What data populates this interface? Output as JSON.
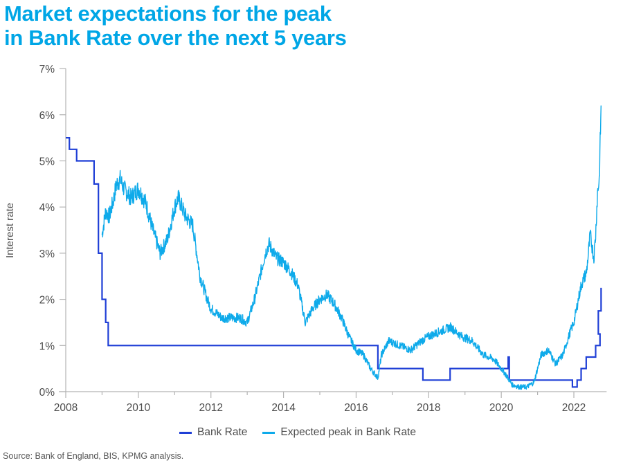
{
  "title_lines": [
    "Market expectations for the peak",
    "in Bank Rate over the next 5 years"
  ],
  "source": "Source: Bank of England, BIS, KPMG analysis.",
  "colors": {
    "title": "#00a6e6",
    "bank_rate": "#1f3fd6",
    "expected_peak": "#0eaaea",
    "axis": "#b3b3b3",
    "text": "#4d4d4d"
  },
  "chart_data": {
    "type": "line",
    "title": "Market expectations for the peak in Bank Rate over the next 5 years",
    "xlabel": "",
    "ylabel": "Interest rate",
    "xlim": [
      2008,
      2022.75
    ],
    "ylim": [
      0,
      7
    ],
    "x_ticks": [
      2008,
      2010,
      2012,
      2014,
      2016,
      2018,
      2020,
      2022
    ],
    "x_tick_labels": [
      "2008",
      "2010",
      "2012",
      "2014",
      "2016",
      "2018",
      "2020",
      "2022"
    ],
    "y_ticks": [
      0,
      1,
      2,
      3,
      4,
      5,
      6,
      7
    ],
    "y_tick_labels": [
      "0%",
      "1%",
      "2%",
      "3%",
      "4%",
      "5%",
      "6%",
      "7%"
    ],
    "grid": false,
    "legend_position": "bottom-center",
    "series": [
      {
        "name": "Bank Rate",
        "style": "step",
        "x": [
          2008.0,
          2008.1,
          2008.3,
          2008.78,
          2008.9,
          2009.0,
          2009.1,
          2009.17,
          2016.6,
          2017.84,
          2018.59,
          2020.19,
          2020.22,
          2021.96,
          2022.09,
          2022.2,
          2022.34,
          2022.6,
          2022.72
        ],
        "values": [
          5.5,
          5.25,
          5.0,
          4.5,
          3.0,
          2.0,
          1.5,
          1.0,
          0.5,
          0.25,
          0.5,
          0.75,
          0.25,
          0.1,
          0.25,
          0.5,
          0.75,
          1.0,
          1.25
        ],
        "note_final": {
          "x": 2022.75,
          "values_after": [
            1.75,
            2.25
          ]
        }
      },
      {
        "name": "Expected peak in Bank Rate",
        "style": "line",
        "x": [
          2009.0,
          2009.1,
          2009.2,
          2009.3,
          2009.4,
          2009.5,
          2009.6,
          2009.7,
          2009.8,
          2010.0,
          2010.2,
          2010.4,
          2010.6,
          2010.8,
          2011.0,
          2011.1,
          2011.3,
          2011.5,
          2011.7,
          2011.9,
          2012.0,
          2012.3,
          2012.5,
          2012.8,
          2013.0,
          2013.2,
          2013.5,
          2013.6,
          2013.8,
          2014.0,
          2014.2,
          2014.4,
          2014.6,
          2014.8,
          2015.0,
          2015.2,
          2015.4,
          2015.6,
          2015.8,
          2016.0,
          2016.2,
          2016.4,
          2016.6,
          2016.7,
          2016.9,
          2017.2,
          2017.5,
          2017.8,
          2018.0,
          2018.3,
          2018.6,
          2018.9,
          2019.2,
          2019.5,
          2019.8,
          2020.1,
          2020.3,
          2020.5,
          2020.7,
          2020.9,
          2021.1,
          2021.3,
          2021.5,
          2021.7,
          2021.9,
          2022.0,
          2022.2,
          2022.35,
          2022.45,
          2022.55,
          2022.6,
          2022.65,
          2022.7,
          2022.75
        ],
        "values": [
          3.4,
          3.9,
          3.8,
          4.1,
          4.5,
          4.6,
          4.4,
          4.3,
          4.2,
          4.4,
          4.1,
          3.5,
          3.0,
          3.3,
          4.0,
          4.2,
          3.8,
          3.6,
          2.5,
          2.0,
          1.8,
          1.6,
          1.6,
          1.6,
          1.5,
          2.0,
          3.0,
          3.2,
          2.9,
          2.8,
          2.6,
          2.3,
          1.5,
          1.8,
          2.0,
          2.1,
          1.9,
          1.6,
          1.2,
          0.9,
          0.8,
          0.5,
          0.3,
          0.8,
          1.1,
          1.0,
          0.9,
          1.1,
          1.2,
          1.3,
          1.4,
          1.2,
          1.1,
          0.8,
          0.7,
          0.4,
          0.15,
          0.1,
          0.1,
          0.2,
          0.8,
          0.9,
          0.6,
          0.8,
          1.3,
          1.5,
          2.3,
          2.6,
          3.4,
          2.9,
          3.4,
          4.3,
          4.6,
          6.2
        ]
      }
    ]
  }
}
